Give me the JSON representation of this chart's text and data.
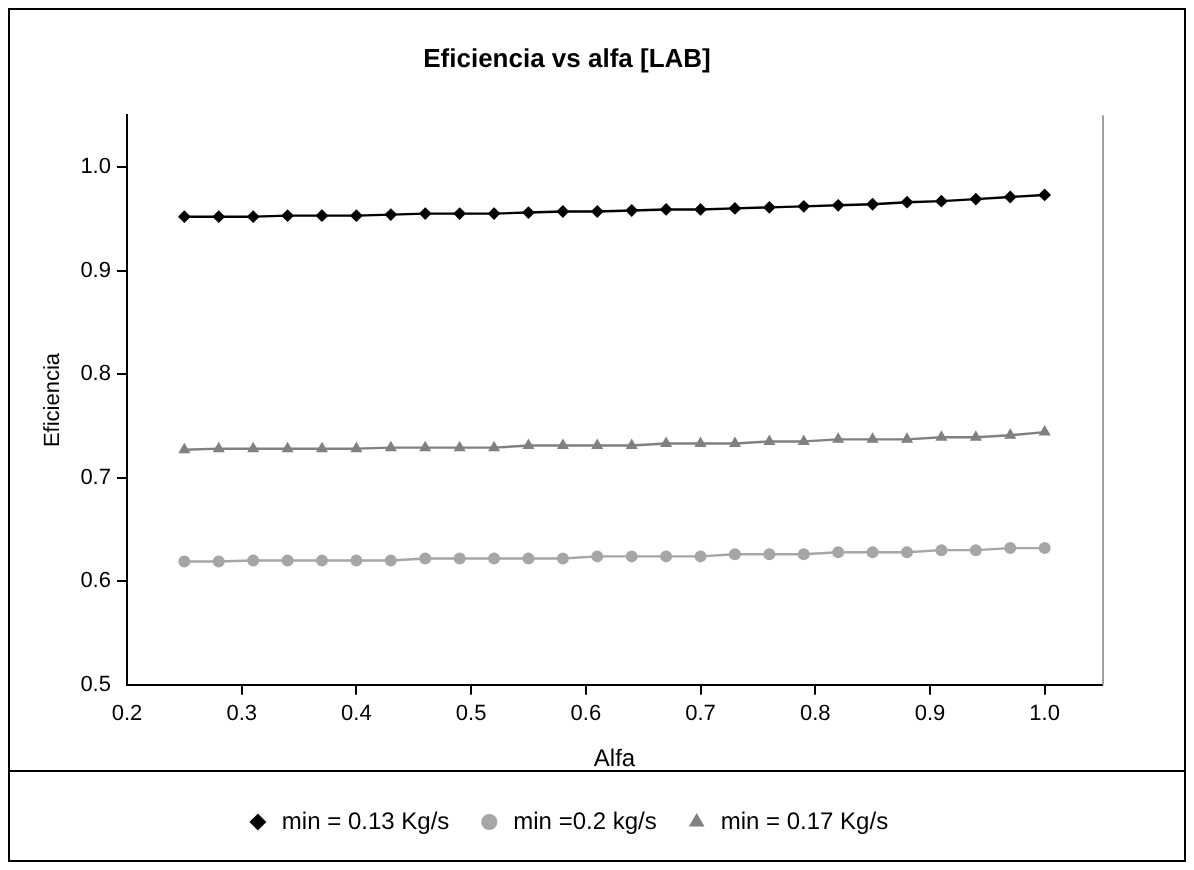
{
  "chart_data": {
    "type": "line",
    "title": "Eficiencia vs alfa [LAB]",
    "xlabel": "Alfa",
    "ylabel": "Eficiencia",
    "x": [
      0.25,
      0.28,
      0.31,
      0.34,
      0.37,
      0.4,
      0.43,
      0.46,
      0.49,
      0.52,
      0.55,
      0.58,
      0.61,
      0.64,
      0.67,
      0.7,
      0.73,
      0.76,
      0.79,
      0.82,
      0.85,
      0.88,
      0.91,
      0.94,
      0.97,
      1.0
    ],
    "series": [
      {
        "name": "min = 0.13 Kg/s",
        "color": "#000000",
        "marker": "diamond",
        "values": [
          0.952,
          0.952,
          0.952,
          0.953,
          0.953,
          0.953,
          0.954,
          0.955,
          0.955,
          0.955,
          0.956,
          0.957,
          0.957,
          0.958,
          0.959,
          0.959,
          0.96,
          0.961,
          0.962,
          0.963,
          0.964,
          0.966,
          0.967,
          0.969,
          0.971,
          0.973
        ]
      },
      {
        "name": "min =0.2 kg/s",
        "color": "#a6a6a6",
        "marker": "circle",
        "values": [
          0.619,
          0.619,
          0.62,
          0.62,
          0.62,
          0.62,
          0.62,
          0.622,
          0.622,
          0.622,
          0.622,
          0.622,
          0.624,
          0.624,
          0.624,
          0.624,
          0.626,
          0.626,
          0.626,
          0.628,
          0.628,
          0.628,
          0.63,
          0.63,
          0.632,
          0.632
        ]
      },
      {
        "name": "min = 0.17 Kg/s",
        "color": "#808080",
        "marker": "triangle",
        "values": [
          0.727,
          0.728,
          0.728,
          0.728,
          0.728,
          0.728,
          0.729,
          0.729,
          0.729,
          0.729,
          0.731,
          0.731,
          0.731,
          0.731,
          0.733,
          0.733,
          0.733,
          0.735,
          0.735,
          0.737,
          0.737,
          0.737,
          0.739,
          0.739,
          0.741,
          0.744
        ]
      }
    ],
    "xlim": [
      0.2,
      1.05
    ],
    "xticks": [
      0.2,
      0.3,
      0.4,
      0.5,
      0.6,
      0.7,
      0.8,
      0.9,
      {
        "value": 1,
        "label": "1.0"
      }
    ],
    "ylim": [
      0.5,
      1.05
    ],
    "yticks": [
      0.5,
      0.6,
      0.7,
      0.8,
      0.9,
      {
        "value": 1,
        "label": "1.0"
      }
    ],
    "grid": false,
    "legend": "bottom",
    "line_style": "solid"
  }
}
